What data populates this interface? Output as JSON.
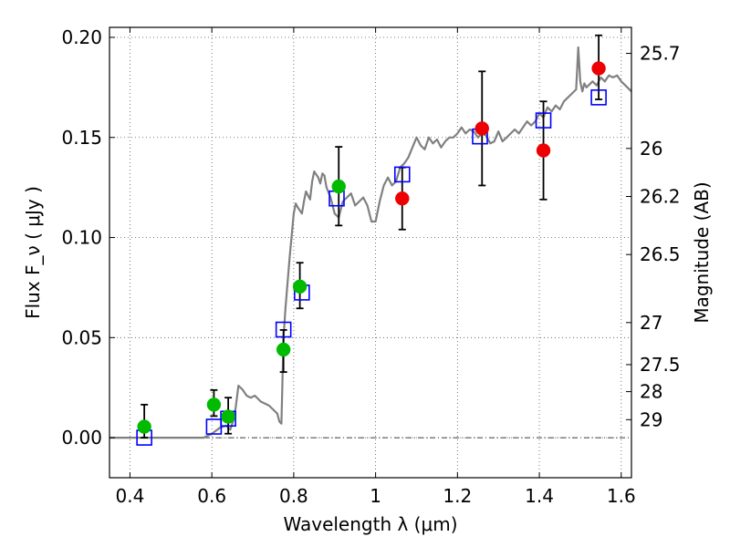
{
  "chart_data": {
    "type": "scatter",
    "title": "",
    "xlabel": "Wavelength  λ (μm)",
    "ylabel": "Flux  F_ν  ( μJy )",
    "ylabel_right": "Magnitude (AB)",
    "xlim": [
      0.35,
      1.625
    ],
    "ylim": [
      -0.02,
      0.205
    ],
    "grid": true,
    "grid_style": "dotted",
    "x_ticks": [
      0.4,
      0.6,
      0.8,
      1.0,
      1.2,
      1.4,
      1.6
    ],
    "x_tick_labels": [
      "0.4",
      "0.6",
      "0.8",
      "1",
      "1.2",
      "1.4",
      "1.6"
    ],
    "y_ticks": [
      0.0,
      0.05,
      0.1,
      0.15,
      0.2
    ],
    "y_tick_labels": [
      "0.00",
      "0.05",
      "0.10",
      "0.15",
      "0.20"
    ],
    "right_axis": {
      "label": "Magnitude (AB)",
      "ticks": [
        {
          "mag": "25.7",
          "flux": 0.192
        },
        {
          "mag": "26",
          "flux": 0.1445
        },
        {
          "mag": "26.2",
          "flux": 0.1205
        },
        {
          "mag": "26.5",
          "flux": 0.0915
        },
        {
          "mag": "27",
          "flux": 0.0575
        },
        {
          "mag": "27.5",
          "flux": 0.0365
        },
        {
          "mag": "28",
          "flux": 0.023
        },
        {
          "mag": "29",
          "flux": 0.009
        }
      ]
    },
    "zero_line": 0.0,
    "series": [
      {
        "type": "line",
        "color": "#808080",
        "x": [
          0.35,
          0.5,
          0.58,
          0.6,
          0.62,
          0.635,
          0.645,
          0.655,
          0.66,
          0.665,
          0.675,
          0.685,
          0.695,
          0.705,
          0.72,
          0.73,
          0.74,
          0.75,
          0.76,
          0.765,
          0.77,
          0.775,
          0.78,
          0.79,
          0.8,
          0.805,
          0.81,
          0.82,
          0.825,
          0.83,
          0.84,
          0.845,
          0.85,
          0.86,
          0.865,
          0.87,
          0.875,
          0.88,
          0.89,
          0.9,
          0.91,
          0.92,
          0.93,
          0.94,
          0.95,
          0.96,
          0.97,
          0.98,
          0.99,
          1.0,
          1.01,
          1.02,
          1.03,
          1.04,
          1.05,
          1.06,
          1.07,
          1.08,
          1.09,
          1.1,
          1.11,
          1.12,
          1.13,
          1.14,
          1.15,
          1.16,
          1.17,
          1.18,
          1.19,
          1.2,
          1.21,
          1.22,
          1.23,
          1.24,
          1.25,
          1.26,
          1.27,
          1.28,
          1.29,
          1.3,
          1.31,
          1.32,
          1.33,
          1.34,
          1.35,
          1.36,
          1.37,
          1.38,
          1.39,
          1.4,
          1.41,
          1.42,
          1.43,
          1.44,
          1.45,
          1.46,
          1.47,
          1.48,
          1.49,
          1.495,
          1.5,
          1.505,
          1.51,
          1.515,
          1.52,
          1.53,
          1.54,
          1.55,
          1.56,
          1.57,
          1.58,
          1.59,
          1.6,
          1.61,
          1.625
        ],
        "values": [
          0.0,
          0.0,
          0.0,
          0.002,
          0.005,
          0.006,
          0.004,
          0.01,
          0.018,
          0.026,
          0.024,
          0.021,
          0.02,
          0.021,
          0.018,
          0.017,
          0.016,
          0.014,
          0.012,
          0.008,
          0.007,
          0.05,
          0.065,
          0.09,
          0.112,
          0.117,
          0.115,
          0.112,
          0.118,
          0.123,
          0.119,
          0.128,
          0.133,
          0.13,
          0.127,
          0.132,
          0.131,
          0.125,
          0.12,
          0.112,
          0.11,
          0.118,
          0.12,
          0.122,
          0.116,
          0.118,
          0.12,
          0.116,
          0.108,
          0.108,
          0.118,
          0.126,
          0.13,
          0.126,
          0.128,
          0.135,
          0.137,
          0.14,
          0.145,
          0.15,
          0.146,
          0.144,
          0.15,
          0.147,
          0.149,
          0.145,
          0.148,
          0.15,
          0.15,
          0.152,
          0.155,
          0.152,
          0.154,
          0.153,
          0.15,
          0.152,
          0.151,
          0.147,
          0.148,
          0.153,
          0.148,
          0.15,
          0.152,
          0.154,
          0.152,
          0.155,
          0.158,
          0.156,
          0.158,
          0.162,
          0.16,
          0.165,
          0.163,
          0.166,
          0.164,
          0.168,
          0.17,
          0.172,
          0.174,
          0.195,
          0.178,
          0.173,
          0.177,
          0.175,
          0.176,
          0.178,
          0.176,
          0.18,
          0.178,
          0.181,
          0.18,
          0.181,
          0.178,
          0.176,
          0.173
        ]
      },
      {
        "type": "marker",
        "marker": "square-open",
        "color": "#0000ff",
        "x": [
          0.435,
          0.605,
          0.64,
          0.775,
          0.82,
          0.905,
          1.065,
          1.255,
          1.41,
          1.545
        ],
        "values": [
          0.0,
          0.0055,
          0.0095,
          0.054,
          0.0725,
          0.1195,
          0.1315,
          0.1505,
          0.1585,
          0.17
        ]
      },
      {
        "type": "marker",
        "marker": "circle",
        "color": "#00bb00",
        "x": [
          0.435,
          0.605,
          0.64,
          0.775,
          0.815,
          0.91
        ],
        "values": [
          0.0055,
          0.0165,
          0.0105,
          0.044,
          0.0755,
          0.1255
        ],
        "yerr_low": [
          0.0055,
          0.0057,
          0.0085,
          0.0112,
          0.0109,
          0.0195
        ],
        "yerr_high": [
          0.011,
          0.0073,
          0.0095,
          0.0098,
          0.0119,
          0.0198
        ]
      },
      {
        "type": "marker",
        "marker": "circle",
        "color": "#ee0000",
        "x": [
          1.065,
          1.26,
          1.41,
          1.545
        ],
        "values": [
          0.1195,
          0.1545,
          0.1435,
          0.1845
        ],
        "yerr_low": [
          0.0155,
          0.0285,
          0.0245,
          0.0155
        ],
        "yerr_high": [
          0.0155,
          0.0285,
          0.0245,
          0.0165
        ]
      }
    ]
  }
}
